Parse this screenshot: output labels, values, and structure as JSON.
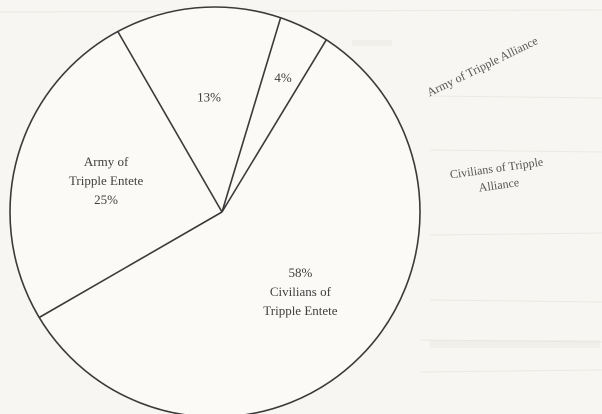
{
  "chart_data": {
    "type": "pie",
    "slices": [
      {
        "label_lines": [
          "Army of",
          "Tripple Entete",
          "25%"
        ],
        "value": 25
      },
      {
        "label_lines": [
          "13%"
        ],
        "value": 13,
        "outside_label": [
          "Army of Tripple Alliance"
        ]
      },
      {
        "label_lines": [
          "4%"
        ],
        "value": 4,
        "outside_label": [
          "Civilians of Tripple",
          "Alliance"
        ]
      },
      {
        "label_lines": [
          "58%",
          "Civilians of",
          "Tripple Entete"
        ],
        "value": 58
      }
    ]
  }
}
